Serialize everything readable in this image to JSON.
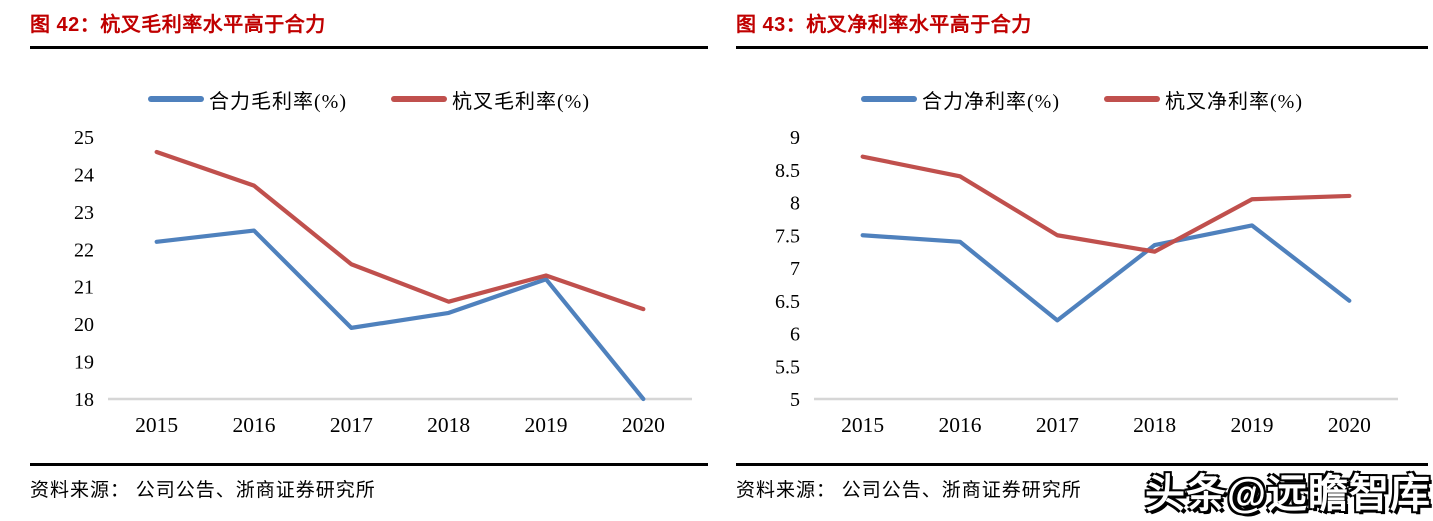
{
  "watermark": {
    "text": "头条@远瞻智库"
  },
  "colors": {
    "title_red": "#c00000",
    "divider": "#000000",
    "axis_line": "#d6d6d6",
    "tick_text": "#000000",
    "heli_blue": "#4f81bd",
    "hangcha_red": "#c0504d",
    "watermark_fill": "#ffffff",
    "watermark_outline": "#000000"
  },
  "chart_data": [
    {
      "type": "line",
      "title": "图 42：杭叉毛利率水平高于合力",
      "source": "资料来源： 公司公告、浙商证券研究所",
      "categories": [
        "2015",
        "2016",
        "2017",
        "2018",
        "2019",
        "2020"
      ],
      "series": [
        {
          "name": "合力毛利率(%)",
          "color": "#4f81bd",
          "values": [
            22.2,
            22.5,
            19.9,
            20.3,
            21.2,
            18.0
          ]
        },
        {
          "name": "杭叉毛利率(%)",
          "color": "#c0504d",
          "values": [
            24.6,
            23.7,
            21.6,
            20.6,
            21.3,
            20.4
          ]
        }
      ],
      "ylim": [
        18,
        25
      ],
      "ystep": 1,
      "grid": false,
      "legend_position": "top"
    },
    {
      "type": "line",
      "title": "图 43：杭叉净利率水平高于合力",
      "source": "资料来源： 公司公告、浙商证券研究所",
      "categories": [
        "2015",
        "2016",
        "2017",
        "2018",
        "2019",
        "2020"
      ],
      "series": [
        {
          "name": "合力净利率(%)",
          "color": "#4f81bd",
          "values": [
            7.5,
            7.4,
            6.2,
            7.35,
            7.65,
            6.5
          ]
        },
        {
          "name": "杭叉净利率(%)",
          "color": "#c0504d",
          "values": [
            8.7,
            8.4,
            7.5,
            7.25,
            8.05,
            8.1
          ]
        }
      ],
      "ylim": [
        5,
        9
      ],
      "ystep": 0.5,
      "grid": false,
      "legend_position": "top"
    }
  ]
}
